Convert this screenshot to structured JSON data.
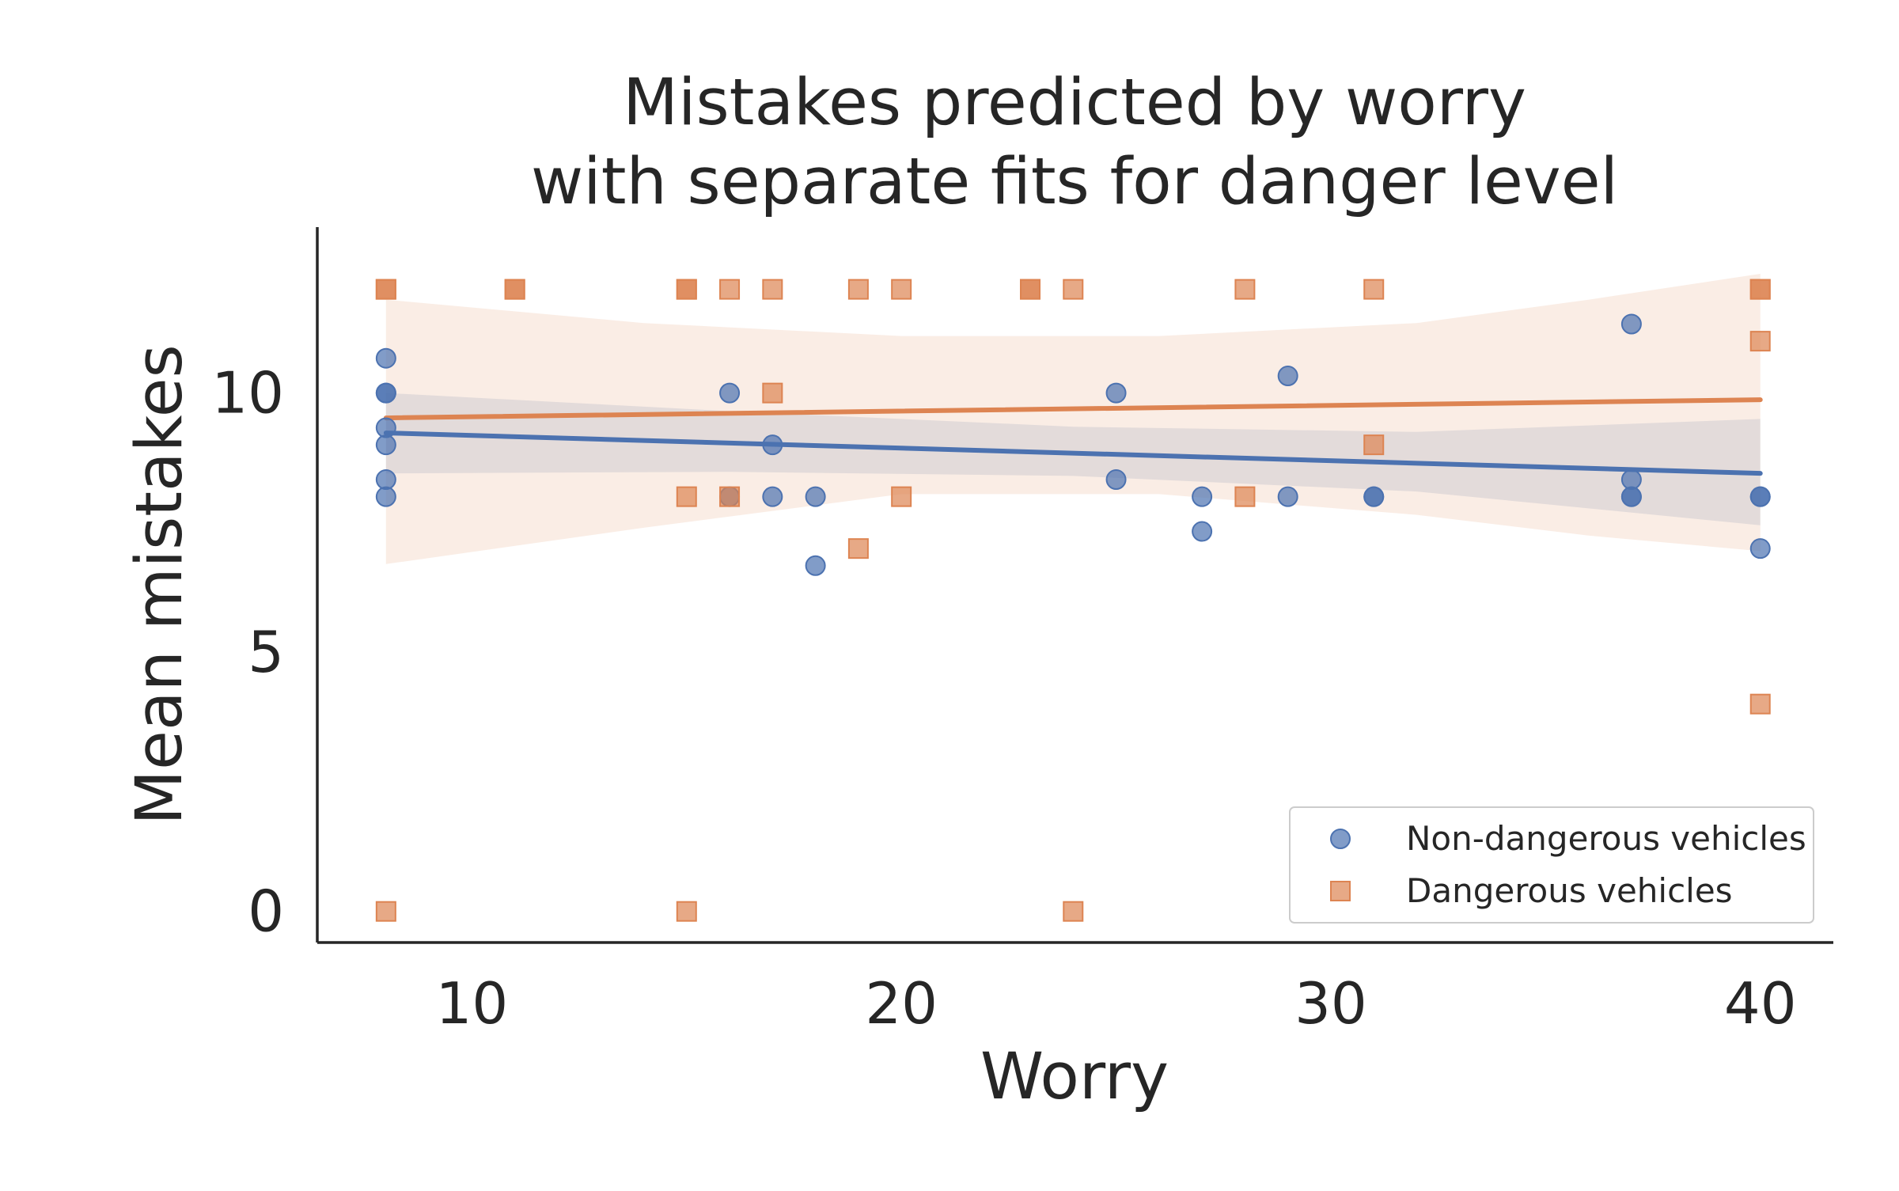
{
  "chart_data": {
    "type": "scatter",
    "title": [
      "Mistakes predicted by worry",
      "with separate fits for danger level"
    ],
    "xlabel": "Worry",
    "ylabel": "Mean mistakes",
    "xlim": [
      6.4,
      41.7
    ],
    "ylim": [
      -0.6,
      13.2
    ],
    "xticks": [
      10,
      20,
      30,
      40
    ],
    "yticks": [
      0,
      5,
      10
    ],
    "grid": false,
    "legend_position": "lower right",
    "series": [
      {
        "name": "Non-dangerous vehicles",
        "marker": "circle",
        "color": "#4c72b0",
        "points": [
          [
            8,
            10.67
          ],
          [
            8,
            10
          ],
          [
            8,
            10
          ],
          [
            8,
            9.33
          ],
          [
            8,
            9
          ],
          [
            8,
            8.33
          ],
          [
            8,
            8
          ],
          [
            16,
            10
          ],
          [
            16,
            8
          ],
          [
            17,
            9
          ],
          [
            17,
            8
          ],
          [
            18,
            8
          ],
          [
            18,
            6.67
          ],
          [
            25,
            10
          ],
          [
            25,
            8.33
          ],
          [
            27,
            8
          ],
          [
            27,
            7.33
          ],
          [
            29,
            10.33
          ],
          [
            29,
            8
          ],
          [
            31,
            8
          ],
          [
            31,
            8
          ],
          [
            37,
            11.33
          ],
          [
            37,
            8.33
          ],
          [
            37,
            8
          ],
          [
            37,
            8
          ],
          [
            40,
            8
          ],
          [
            40,
            8
          ],
          [
            40,
            7
          ]
        ],
        "fit": {
          "x": [
            8,
            40
          ],
          "y": [
            9.23,
            8.45
          ]
        },
        "ci": {
          "x": [
            8,
            16,
            24,
            32,
            40
          ],
          "lower": [
            8.45,
            8.48,
            8.4,
            8.1,
            7.45
          ],
          "upper": [
            10.0,
            9.65,
            9.35,
            9.25,
            9.5
          ]
        }
      },
      {
        "name": "Dangerous vehicles",
        "marker": "square",
        "color": "#dd8452",
        "points": [
          [
            8,
            12
          ],
          [
            8,
            12
          ],
          [
            8,
            0
          ],
          [
            11,
            12
          ],
          [
            11,
            12
          ],
          [
            15,
            12
          ],
          [
            15,
            12
          ],
          [
            15,
            8
          ],
          [
            15,
            0
          ],
          [
            16,
            12
          ],
          [
            16,
            8
          ],
          [
            17,
            12
          ],
          [
            17,
            10
          ],
          [
            19,
            12
          ],
          [
            19,
            7
          ],
          [
            20,
            12
          ],
          [
            20,
            8
          ],
          [
            23,
            12
          ],
          [
            23,
            12
          ],
          [
            24,
            12
          ],
          [
            24,
            0
          ],
          [
            28,
            12
          ],
          [
            28,
            8
          ],
          [
            31,
            12
          ],
          [
            31,
            9
          ],
          [
            40,
            12
          ],
          [
            40,
            12
          ],
          [
            40,
            11
          ],
          [
            40,
            4
          ]
        ],
        "fit": {
          "x": [
            8,
            40
          ],
          "y": [
            9.52,
            9.87
          ]
        },
        "ci": {
          "x": [
            8,
            14,
            20,
            26,
            32,
            36,
            40
          ],
          "lower": [
            6.7,
            7.4,
            8.05,
            8.05,
            7.65,
            7.25,
            6.95
          ],
          "upper": [
            11.8,
            11.35,
            11.1,
            11.1,
            11.35,
            11.8,
            12.3
          ]
        }
      }
    ]
  }
}
